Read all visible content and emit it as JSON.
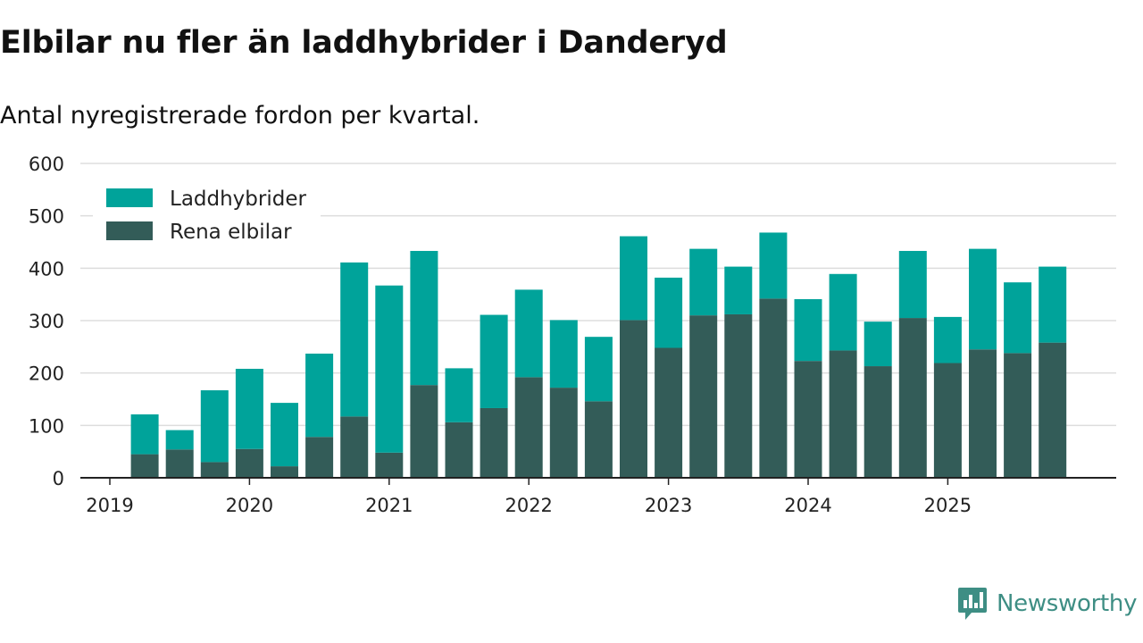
{
  "title": "Elbilar nu fler än laddhybrider i Danderyd",
  "subtitle": "Antal nyregistrerade fordon per kvartal.",
  "brand": {
    "name": "Newsworthy",
    "icon": "newsworthy-logo-icon",
    "color": "#3e8e84"
  },
  "colors": {
    "laddhybrider": "#00a39a",
    "elbilar": "#335c58",
    "grid": "#dddddd",
    "axis": "#222222"
  },
  "chart_data": {
    "type": "bar",
    "stacked": true,
    "title": "Elbilar nu fler än laddhybrider i Danderyd",
    "subtitle": "Antal nyregistrerade fordon per kvartal.",
    "xlabel": "",
    "ylabel": "",
    "ylim": [
      0,
      600
    ],
    "yticks": [
      0,
      100,
      200,
      300,
      400,
      500,
      600
    ],
    "x_tick_labels": [
      {
        "label": "2019",
        "index": 0
      },
      {
        "label": "2020",
        "index": 4
      },
      {
        "label": "2021",
        "index": 8
      },
      {
        "label": "2022",
        "index": 12
      },
      {
        "label": "2023",
        "index": 16
      },
      {
        "label": "2024",
        "index": 20
      },
      {
        "label": "2025",
        "index": 24
      }
    ],
    "categories": [
      "2019 Q1",
      "2019 Q2",
      "2019 Q3",
      "2019 Q4",
      "2020 Q1",
      "2020 Q2",
      "2020 Q3",
      "2020 Q4",
      "2021 Q1",
      "2021 Q2",
      "2021 Q3",
      "2021 Q4",
      "2022 Q1",
      "2022 Q2",
      "2022 Q3",
      "2022 Q4",
      "2023 Q1",
      "2023 Q2",
      "2023 Q3",
      "2023 Q4",
      "2024 Q1",
      "2024 Q2",
      "2024 Q3",
      "2024 Q4",
      "2025 Q1",
      "2025 Q2",
      "2025 Q3",
      "2025 Q4"
    ],
    "legend_position": "top-left",
    "series": [
      {
        "name": "Rena elbilar",
        "key": "elbilar",
        "values": [
          null,
          45,
          54,
          30,
          55,
          22,
          78,
          117,
          48,
          177,
          106,
          133,
          192,
          172,
          146,
          301,
          248,
          310,
          312,
          342,
          223,
          243,
          213,
          305,
          219,
          245,
          238,
          258
        ]
      },
      {
        "name": "Laddhybrider",
        "key": "laddhybrider",
        "values": [
          null,
          76,
          37,
          137,
          153,
          121,
          159,
          294,
          319,
          256,
          103,
          178,
          167,
          129,
          123,
          160,
          134,
          127,
          91,
          126,
          118,
          146,
          85,
          128,
          88,
          192,
          135,
          145
        ]
      }
    ],
    "legend": [
      {
        "name": "Laddhybrider",
        "key": "laddhybrider"
      },
      {
        "name": "Rena elbilar",
        "key": "elbilar"
      }
    ]
  }
}
